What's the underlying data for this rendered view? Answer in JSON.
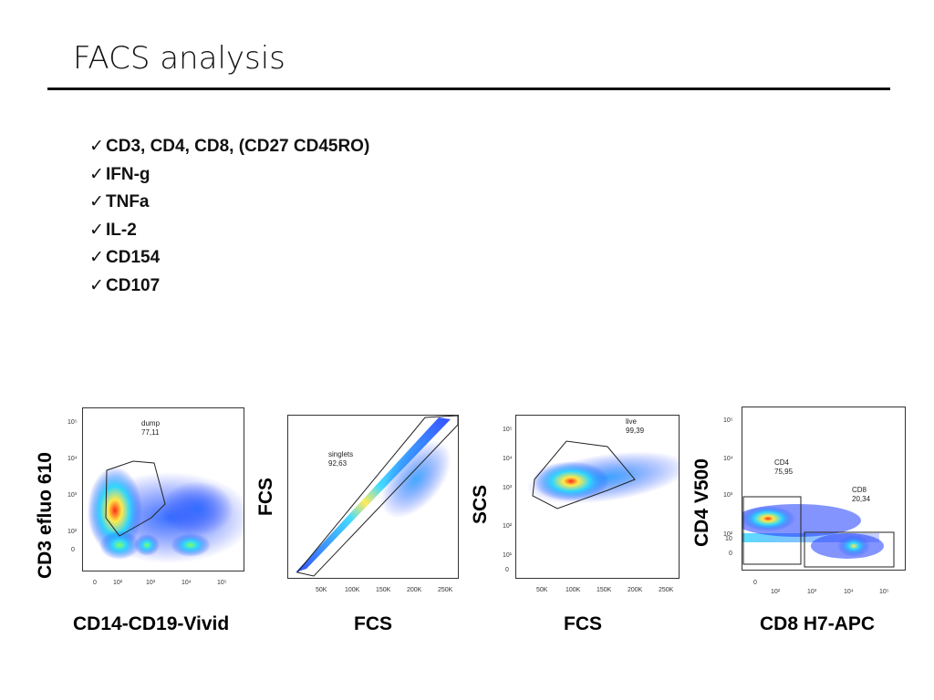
{
  "slide": {
    "title": "FACS analysis",
    "bullets": [
      {
        "check": "✓",
        "text": "CD3, CD4, CD8, (CD27 CD45RO)"
      },
      {
        "check": "✓",
        "text": "IFN-g"
      },
      {
        "check": "✓",
        "text": "TNFa"
      },
      {
        "check": "✓",
        "text": "IL-2"
      },
      {
        "check": "✓",
        "text": "CD154"
      },
      {
        "check": "✓",
        "text": "CD107"
      }
    ]
  },
  "plots": [
    {
      "xlabel": "CD14-CD19-Vivid",
      "ylabel": "CD3 efluo 610",
      "gate_name": "dump",
      "gate_value": "77,11",
      "xticks": [
        "0",
        "10²",
        "10³",
        "10⁴",
        "10⁵"
      ],
      "yticks": [
        "10⁵",
        "10⁴",
        "10³",
        "10²",
        "0"
      ]
    },
    {
      "xlabel": "FCS",
      "ylabel": "FCS",
      "gate_name": "singlets",
      "gate_value": "92,63",
      "xticks": [
        "50K",
        "100K",
        "150K",
        "200K",
        "250K"
      ]
    },
    {
      "xlabel": "FCS",
      "ylabel": "SCS",
      "gate_name": "live",
      "gate_value": "99,39",
      "xticks": [
        "50K",
        "100K",
        "150K",
        "200K",
        "250K"
      ],
      "yticks": [
        "10⁵",
        "10⁴",
        "10³",
        "10²",
        "10¹",
        "0"
      ]
    },
    {
      "xlabel": "CD8 H7-APC",
      "ylabel": "CD4 V500",
      "gates": [
        {
          "name": "CD4",
          "value": "75,95"
        },
        {
          "name": "CD8",
          "value": "20,34"
        }
      ],
      "xticks": [
        "0",
        "10²",
        "10³",
        "10⁴",
        "10⁵"
      ],
      "yticks": [
        "10⁵",
        "10⁴",
        "10³",
        "10²",
        "10",
        "0"
      ]
    }
  ],
  "colors": {
    "density_low": "#1f3cff",
    "density_mid": "#2fd6ff",
    "density_high": "#ffe94a",
    "density_peak": "#ff2a12"
  }
}
